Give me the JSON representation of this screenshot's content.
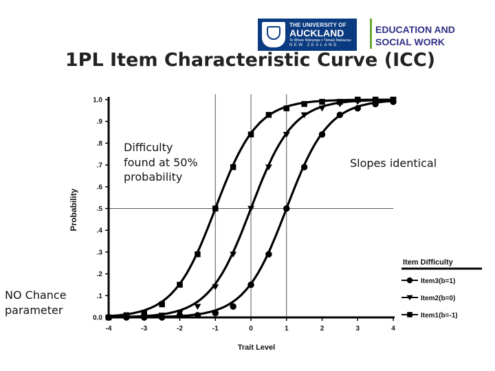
{
  "header": {
    "logo": {
      "name": "university-of-auckland-logo",
      "line1": "THE UNIVERSITY OF",
      "line2": "AUCKLAND",
      "line3": "Te Whare Wānanga o Tāmaki Makaurau",
      "line4": "NEW ZEALAND"
    },
    "faculty": {
      "line1": "EDUCATION AND",
      "line2": "SOCIAL WORK"
    }
  },
  "page_title": "1PL Item Characteristic Curve (ICC)",
  "annotations": {
    "difficulty_note": "Difficulty found at 50% probability",
    "slopes_note": "Slopes identical",
    "chance_note": "NO Chance parameter"
  },
  "colors": {
    "logo_blue": "#0a3a80",
    "faculty_text": "#2f2f86",
    "faculty_divider": "#6aa632",
    "series": "#000000"
  },
  "chart_data": {
    "type": "line",
    "xlabel": "Trait Level",
    "ylabel": "Probability",
    "xlim": [
      -4,
      4
    ],
    "ylim": [
      0,
      1
    ],
    "x_ticks": [
      "-4",
      "-3",
      "-2",
      "-1",
      "0",
      "1",
      "2",
      "3",
      "4"
    ],
    "y_ticks": [
      "0.0",
      ".1",
      ".2",
      ".3",
      ".4",
      ".5",
      ".6",
      ".7",
      ".8",
      ".9",
      "1.0"
    ],
    "reference_lines": {
      "x": [
        -1,
        0,
        1
      ],
      "y": [
        0.5
      ]
    },
    "legend": {
      "title": "Item Difficulty",
      "position": "bottom-right",
      "entries": [
        "Item3(b=1)",
        "Item2(b=0)",
        "Item1(b=-1)"
      ]
    },
    "series": [
      {
        "name": "Item3(b=1)",
        "marker": "circle",
        "x": [
          -4,
          -3.5,
          -3,
          -2.5,
          -2,
          -1.5,
          -1,
          -0.5,
          0,
          0.5,
          1,
          1.5,
          2,
          2.5,
          3,
          3.5,
          4
        ],
        "y": [
          0.0,
          0.0,
          0.0,
          0.0,
          0.01,
          0.01,
          0.02,
          0.05,
          0.15,
          0.29,
          0.5,
          0.69,
          0.84,
          0.93,
          0.96,
          0.98,
          0.99
        ]
      },
      {
        "name": "Item2(b=0)",
        "marker": "triangle-down",
        "x": [
          -4,
          -3.5,
          -3,
          -2.5,
          -2,
          -1.5,
          -1,
          -0.5,
          0,
          0.5,
          1,
          1.5,
          2,
          2.5,
          3,
          3.5,
          4
        ],
        "y": [
          0.0,
          0.0,
          0.0,
          0.01,
          0.02,
          0.05,
          0.14,
          0.29,
          0.5,
          0.69,
          0.84,
          0.93,
          0.96,
          0.98,
          0.99,
          0.99,
          1.0
        ]
      },
      {
        "name": "Item1(b=-1)",
        "marker": "square",
        "x": [
          -4,
          -3.5,
          -3,
          -2.5,
          -2,
          -1.5,
          -1,
          -0.5,
          0,
          0.5,
          1,
          1.5,
          2,
          2.5,
          3,
          3.5,
          4
        ],
        "y": [
          0.0,
          0.01,
          0.02,
          0.06,
          0.15,
          0.29,
          0.5,
          0.69,
          0.84,
          0.93,
          0.96,
          0.98,
          0.99,
          0.99,
          1.0,
          1.0,
          1.0
        ]
      }
    ]
  }
}
